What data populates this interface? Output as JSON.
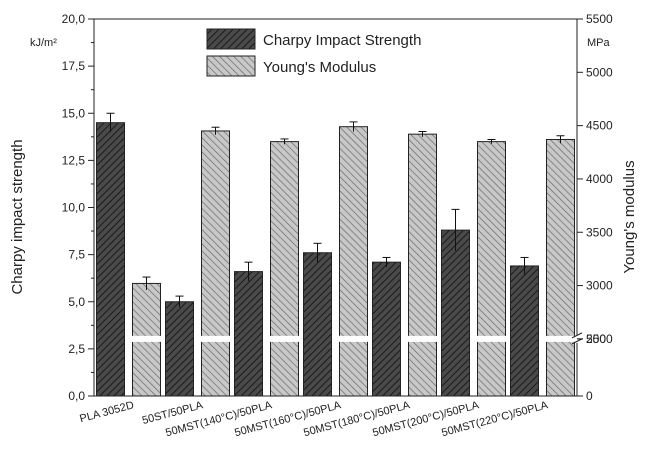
{
  "chart_data": {
    "type": "bar",
    "categories": [
      "PLA 3052D",
      "50ST/50PLA",
      "50MST(140°C)/50PLA",
      "50MST(160°C)/50PLA",
      "50MST(180°C)/50PLA",
      "50MST(200°C)/50PLA",
      "50MST(220°C)/50PLA"
    ],
    "series": [
      {
        "name": "Charpy Impact Strength",
        "axis": "left",
        "values": [
          14.5,
          5.0,
          6.6,
          7.6,
          7.1,
          8.8,
          6.9
        ],
        "errors": [
          0.5,
          0.3,
          0.5,
          0.5,
          0.25,
          1.1,
          0.45
        ],
        "color": "#555555"
      },
      {
        "name": "Young's Modulus",
        "axis": "right",
        "values": [
          3020,
          4450,
          4350,
          4490,
          4420,
          4350,
          4370
        ],
        "errors": [
          60,
          35,
          25,
          45,
          25,
          20,
          35
        ],
        "color": "#aaaaaa"
      }
    ],
    "ylabel": "Charpy impact strength",
    "ylabel_unit": "kJ/m²",
    "y2label": "Young's modulus",
    "y2label_unit": "MPa",
    "ylim": [
      0,
      20
    ],
    "yticks": [
      "0,0",
      "2,5",
      "5,0",
      "7,5",
      "10,0",
      "12,5",
      "15,0",
      "17,5",
      "20,0"
    ],
    "y2ticks_lower": [
      "0",
      "500"
    ],
    "y2ticks_upper": [
      "2500",
      "3000",
      "3500",
      "4000",
      "4500",
      "5000",
      "5500"
    ],
    "y2_upper_range": [
      2500,
      5500
    ],
    "y2_lower_range": [
      0,
      500
    ],
    "y2_break_fraction": 0.1515,
    "legend_position": "top-center",
    "grid": false
  }
}
